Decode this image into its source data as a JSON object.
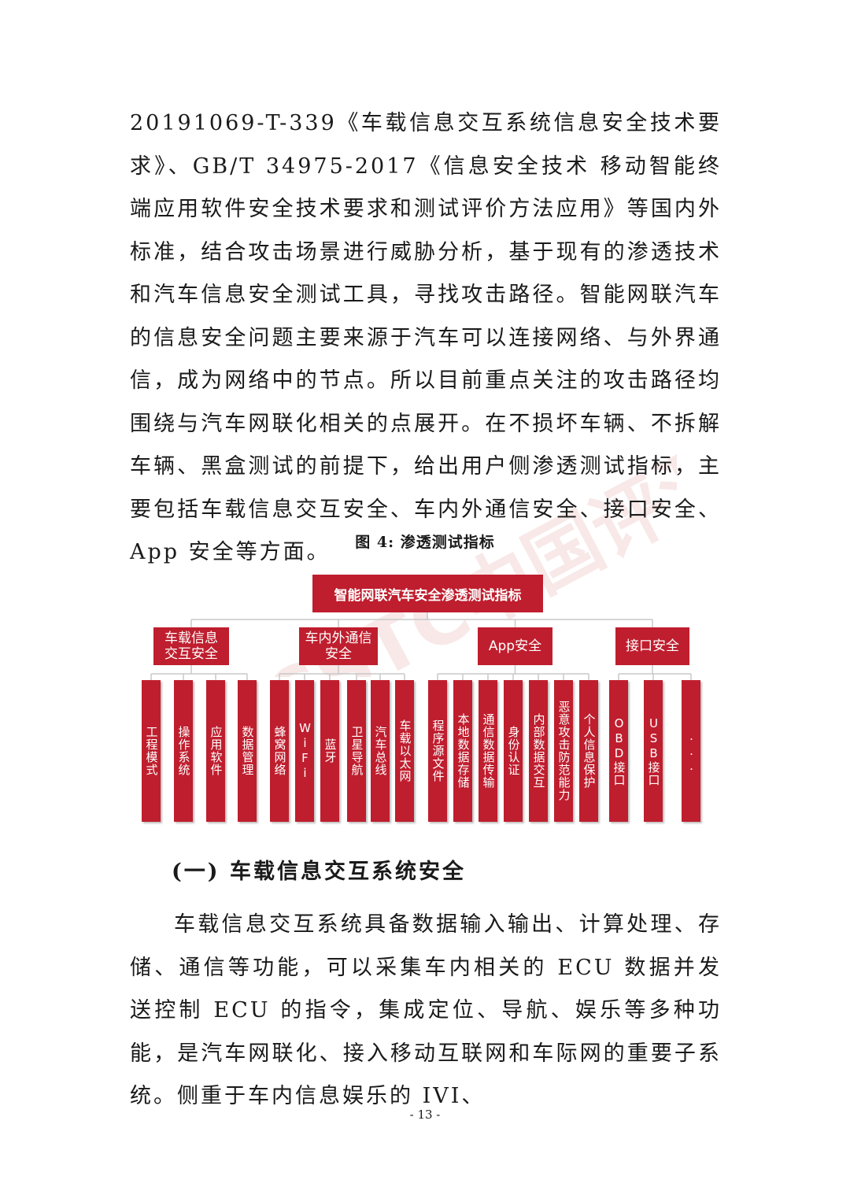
{
  "paragraphs": {
    "p1": "20191069-T-339《车载信息交互系统信息安全技术要求》、GB/T 34975-2017《信息安全技术 移动智能终端应用软件安全技术要求和测试评价方法应用》等国内外标准，结合攻击场景进行威胁分析，基于现有的渗透技术和汽车信息安全测试工具，寻找攻击路径。智能网联汽车的信息安全问题主要来源于汽车可以连接网络、与外界通信，成为网络中的节点。所以目前重点关注的攻击路径均围绕与汽车网联化相关的点展开。在不损坏车辆、不拆解车辆、黑盒测试的前提下，给出用户侧渗透测试指标，主要包括车载信息交互安全、车内外通信安全、接口安全、App 安全等方面。",
    "p2": "车载信息交互系统具备数据输入输出、计算处理、存储、通信等功能，可以采集车内相关的 ECU 数据并发送控制 ECU 的指令，集成定位、导航、娱乐等多种功能，是汽车网联化、接入移动互联网和车际网的重要子系统。侧重于车内信息娱乐的 IVI、"
  },
  "figure": {
    "caption": "图 4:  渗透测试指标",
    "root": "智能网联汽车安全渗透测试指标",
    "categories": [
      {
        "label_line1": "车载信息",
        "label_line2": "交互安全",
        "items": [
          "工程模式",
          "操作系统",
          "应用软件",
          "数据管理"
        ]
      },
      {
        "label_line1": "车内外通信",
        "label_line2": "安全",
        "items": [
          "蜂窝网络",
          "WiFi",
          "蓝牙",
          "卫星导航",
          "汽车总线",
          "车载以太网"
        ]
      },
      {
        "label_line1": "App安全",
        "label_line2": "",
        "items": [
          "程序源文件",
          "本地数据存储",
          "通信数据传输",
          "身份认证",
          "内部数据交互",
          "恶意攻击防范能力",
          "个人信息保护"
        ]
      },
      {
        "label_line1": "接口安全",
        "label_line2": "",
        "items": [
          "OBD接口",
          "USB接口",
          "..."
        ]
      }
    ]
  },
  "section_heading": "(一) 车载信息交互系统安全",
  "page_number": "- 13 -",
  "watermark_text": "CSTC中国评测",
  "colors": {
    "box_red": "#bf1e2e",
    "connector": "#c8c8c8",
    "watermark": "#f2d0d0"
  }
}
